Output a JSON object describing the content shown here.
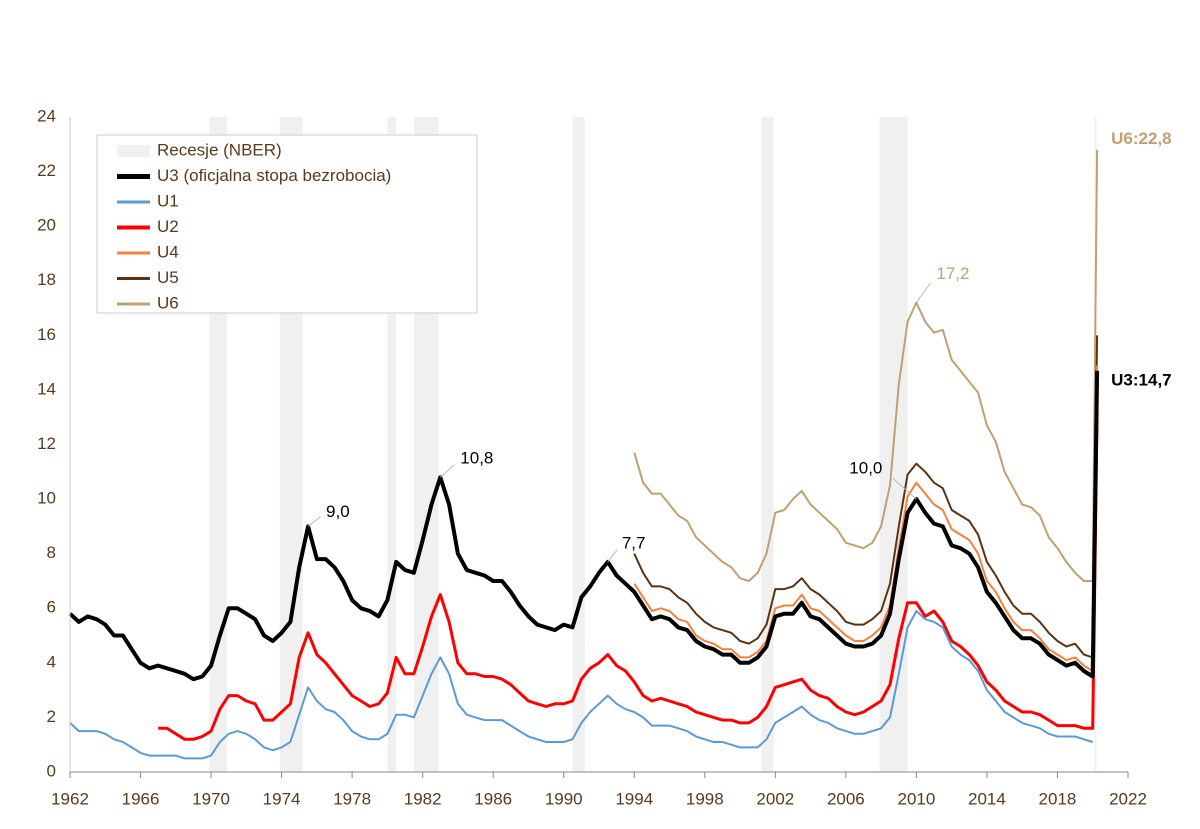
{
  "chart_data": {
    "type": "line",
    "recession_label": "Recesje (NBER)",
    "recession_color": "#f0f0f0",
    "recessions": [
      [
        1969.9,
        1970.9
      ],
      [
        1973.9,
        1975.2
      ],
      [
        1980.0,
        1980.5
      ],
      [
        1981.5,
        1982.9
      ],
      [
        1990.5,
        1991.2
      ],
      [
        2001.2,
        2001.9
      ],
      [
        2007.9,
        2009.5
      ],
      [
        2020.1,
        2020.2
      ]
    ],
    "x": [
      1962.0,
      1962.5,
      1963.0,
      1963.5,
      1964.0,
      1964.5,
      1965.0,
      1965.5,
      1966.0,
      1966.5,
      1967.0,
      1967.5,
      1968.0,
      1968.5,
      1969.0,
      1969.5,
      1970.0,
      1970.5,
      1971.0,
      1971.5,
      1972.0,
      1972.5,
      1973.0,
      1973.5,
      1974.0,
      1974.5,
      1975.0,
      1975.5,
      1976.0,
      1976.5,
      1977.0,
      1977.5,
      1978.0,
      1978.5,
      1979.0,
      1979.5,
      1980.0,
      1980.5,
      1981.0,
      1981.5,
      1982.0,
      1982.5,
      1983.0,
      1983.5,
      1984.0,
      1984.5,
      1985.0,
      1985.5,
      1986.0,
      1986.5,
      1987.0,
      1987.5,
      1988.0,
      1988.5,
      1989.0,
      1989.5,
      1990.0,
      1990.5,
      1991.0,
      1991.5,
      1992.0,
      1992.5,
      1993.0,
      1993.5,
      1994.0,
      1994.5,
      1995.0,
      1995.5,
      1996.0,
      1996.5,
      1997.0,
      1997.5,
      1998.0,
      1998.5,
      1999.0,
      1999.5,
      2000.0,
      2000.5,
      2001.0,
      2001.5,
      2002.0,
      2002.5,
      2003.0,
      2003.5,
      2004.0,
      2004.5,
      2005.0,
      2005.5,
      2006.0,
      2006.5,
      2007.0,
      2007.5,
      2008.0,
      2008.5,
      2009.0,
      2009.5,
      2010.0,
      2010.5,
      2011.0,
      2011.5,
      2012.0,
      2012.5,
      2013.0,
      2013.5,
      2014.0,
      2014.5,
      2015.0,
      2015.5,
      2016.0,
      2016.5,
      2017.0,
      2017.5,
      2018.0,
      2018.5,
      2019.0,
      2019.5,
      2020.0,
      2020.25
    ],
    "series": [
      {
        "name": "U3 (oficjalna stopa bezrobocia)",
        "color": "#000000",
        "width": 4,
        "values": [
          5.8,
          5.5,
          5.7,
          5.6,
          5.4,
          5.0,
          5.0,
          4.5,
          4.0,
          3.8,
          3.9,
          3.8,
          3.7,
          3.6,
          3.4,
          3.5,
          3.9,
          5.0,
          6.0,
          6.0,
          5.8,
          5.6,
          5.0,
          4.8,
          5.1,
          5.5,
          7.5,
          9.0,
          7.8,
          7.8,
          7.5,
          7.0,
          6.3,
          6.0,
          5.9,
          5.7,
          6.3,
          7.7,
          7.4,
          7.3,
          8.5,
          9.8,
          10.8,
          9.8,
          8.0,
          7.4,
          7.3,
          7.2,
          7.0,
          7.0,
          6.6,
          6.1,
          5.7,
          5.4,
          5.3,
          5.2,
          5.4,
          5.3,
          6.4,
          6.8,
          7.3,
          7.7,
          7.2,
          6.9,
          6.6,
          6.1,
          5.6,
          5.7,
          5.6,
          5.3,
          5.2,
          4.8,
          4.6,
          4.5,
          4.3,
          4.3,
          4.0,
          4.0,
          4.2,
          4.6,
          5.7,
          5.8,
          5.8,
          6.2,
          5.7,
          5.6,
          5.3,
          5.0,
          4.7,
          4.6,
          4.6,
          4.7,
          5.0,
          5.8,
          7.8,
          9.5,
          10.0,
          9.5,
          9.1,
          9.0,
          8.3,
          8.2,
          8.0,
          7.5,
          6.6,
          6.2,
          5.7,
          5.2,
          4.9,
          4.9,
          4.7,
          4.3,
          4.1,
          3.9,
          4.0,
          3.7,
          3.5,
          14.7
        ]
      },
      {
        "name": "U1",
        "color": "#5b9bd5",
        "width": 2,
        "values": [
          1.8,
          1.5,
          1.5,
          1.5,
          1.4,
          1.2,
          1.1,
          0.9,
          0.7,
          0.6,
          0.6,
          0.6,
          0.6,
          0.5,
          0.5,
          0.5,
          0.6,
          1.1,
          1.4,
          1.5,
          1.4,
          1.2,
          0.9,
          0.8,
          0.9,
          1.1,
          2.1,
          3.1,
          2.6,
          2.3,
          2.2,
          1.9,
          1.5,
          1.3,
          1.2,
          1.2,
          1.4,
          2.1,
          2.1,
          2.0,
          2.8,
          3.6,
          4.2,
          3.6,
          2.5,
          2.1,
          2.0,
          1.9,
          1.9,
          1.9,
          1.7,
          1.5,
          1.3,
          1.2,
          1.1,
          1.1,
          1.1,
          1.2,
          1.8,
          2.2,
          2.5,
          2.8,
          2.5,
          2.3,
          2.2,
          2.0,
          1.7,
          1.7,
          1.7,
          1.6,
          1.5,
          1.3,
          1.2,
          1.1,
          1.1,
          1.0,
          0.9,
          0.9,
          0.9,
          1.2,
          1.8,
          2.0,
          2.2,
          2.4,
          2.1,
          1.9,
          1.8,
          1.6,
          1.5,
          1.4,
          1.4,
          1.5,
          1.6,
          2.0,
          3.6,
          5.3,
          5.9,
          5.6,
          5.5,
          5.3,
          4.6,
          4.3,
          4.1,
          3.7,
          3.0,
          2.6,
          2.2,
          2.0,
          1.8,
          1.7,
          1.6,
          1.4,
          1.3,
          1.3,
          1.3,
          1.2,
          1.1,
          null
        ]
      },
      {
        "name": "U2",
        "color": "#ff0000",
        "width": 3,
        "values": [
          null,
          null,
          null,
          null,
          null,
          null,
          null,
          null,
          null,
          null,
          1.6,
          1.6,
          1.4,
          1.2,
          1.2,
          1.3,
          1.5,
          2.3,
          2.8,
          2.8,
          2.6,
          2.5,
          1.9,
          1.9,
          2.2,
          2.5,
          4.2,
          5.1,
          4.3,
          4.0,
          3.6,
          3.2,
          2.8,
          2.6,
          2.4,
          2.5,
          2.9,
          4.2,
          3.6,
          3.6,
          4.6,
          5.7,
          6.5,
          5.5,
          4.0,
          3.6,
          3.6,
          3.5,
          3.5,
          3.4,
          3.2,
          2.9,
          2.6,
          2.5,
          2.4,
          2.5,
          2.5,
          2.6,
          3.4,
          3.8,
          4.0,
          4.3,
          3.9,
          3.7,
          3.3,
          2.8,
          2.6,
          2.7,
          2.6,
          2.5,
          2.4,
          2.2,
          2.1,
          2.0,
          1.9,
          1.9,
          1.8,
          1.8,
          2.0,
          2.4,
          3.1,
          3.2,
          3.3,
          3.4,
          3.0,
          2.8,
          2.7,
          2.4,
          2.2,
          2.1,
          2.2,
          2.4,
          2.6,
          3.2,
          4.9,
          6.2,
          6.2,
          5.7,
          5.9,
          5.5,
          4.8,
          4.6,
          4.3,
          3.9,
          3.3,
          3.0,
          2.6,
          2.4,
          2.2,
          2.2,
          2.1,
          1.9,
          1.7,
          1.7,
          1.7,
          1.6,
          1.6,
          13.2
        ]
      },
      {
        "name": "U4",
        "color": "#f4823c",
        "width": 2,
        "values": [
          null,
          null,
          null,
          null,
          null,
          null,
          null,
          null,
          null,
          null,
          null,
          null,
          null,
          null,
          null,
          null,
          null,
          null,
          null,
          null,
          null,
          null,
          null,
          null,
          null,
          null,
          null,
          null,
          null,
          null,
          null,
          null,
          null,
          null,
          null,
          null,
          null,
          null,
          null,
          null,
          null,
          null,
          null,
          null,
          null,
          null,
          null,
          null,
          null,
          null,
          null,
          null,
          null,
          null,
          null,
          null,
          null,
          null,
          null,
          null,
          null,
          null,
          null,
          null,
          6.9,
          6.4,
          5.9,
          6.0,
          5.9,
          5.6,
          5.5,
          5.0,
          4.8,
          4.7,
          4.5,
          4.5,
          4.2,
          4.2,
          4.4,
          4.8,
          6.0,
          6.1,
          6.1,
          6.5,
          6.0,
          5.9,
          5.6,
          5.3,
          5.0,
          4.8,
          4.8,
          5.0,
          5.3,
          6.1,
          8.2,
          10.1,
          10.6,
          10.2,
          9.8,
          9.6,
          8.9,
          8.7,
          8.5,
          8.0,
          7.0,
          6.6,
          6.0,
          5.5,
          5.2,
          5.2,
          4.9,
          4.5,
          4.3,
          4.1,
          4.2,
          3.9,
          3.7,
          14.9
        ]
      },
      {
        "name": "U5",
        "color": "#5c3310",
        "width": 2,
        "values": [
          null,
          null,
          null,
          null,
          null,
          null,
          null,
          null,
          null,
          null,
          null,
          null,
          null,
          null,
          null,
          null,
          null,
          null,
          null,
          null,
          null,
          null,
          null,
          null,
          null,
          null,
          null,
          null,
          null,
          null,
          null,
          null,
          null,
          null,
          null,
          null,
          null,
          null,
          null,
          null,
          null,
          null,
          null,
          null,
          null,
          null,
          null,
          null,
          null,
          null,
          null,
          null,
          null,
          null,
          null,
          null,
          null,
          null,
          null,
          null,
          null,
          null,
          null,
          null,
          8.0,
          7.3,
          6.8,
          6.8,
          6.7,
          6.4,
          6.2,
          5.8,
          5.5,
          5.3,
          5.2,
          5.1,
          4.8,
          4.7,
          4.9,
          5.4,
          6.7,
          6.7,
          6.8,
          7.1,
          6.7,
          6.5,
          6.2,
          5.9,
          5.5,
          5.4,
          5.4,
          5.6,
          5.9,
          6.9,
          9.0,
          10.9,
          11.3,
          11.0,
          10.6,
          10.4,
          9.6,
          9.4,
          9.2,
          8.7,
          7.7,
          7.2,
          6.6,
          6.1,
          5.8,
          5.8,
          5.5,
          5.1,
          4.8,
          4.6,
          4.7,
          4.3,
          4.2,
          16.0
        ]
      },
      {
        "name": "U6",
        "color": "#c0a070",
        "width": 2,
        "values": [
          null,
          null,
          null,
          null,
          null,
          null,
          null,
          null,
          null,
          null,
          null,
          null,
          null,
          null,
          null,
          null,
          null,
          null,
          null,
          null,
          null,
          null,
          null,
          null,
          null,
          null,
          null,
          null,
          null,
          null,
          null,
          null,
          null,
          null,
          null,
          null,
          null,
          null,
          null,
          null,
          null,
          null,
          null,
          null,
          null,
          null,
          null,
          null,
          null,
          null,
          null,
          null,
          null,
          null,
          null,
          null,
          null,
          null,
          null,
          null,
          null,
          null,
          null,
          null,
          11.7,
          10.6,
          10.2,
          10.2,
          9.8,
          9.4,
          9.2,
          8.6,
          8.3,
          8.0,
          7.7,
          7.5,
          7.1,
          7.0,
          7.3,
          8.0,
          9.5,
          9.6,
          10.0,
          10.3,
          9.8,
          9.5,
          9.2,
          8.9,
          8.4,
          8.3,
          8.2,
          8.4,
          9.0,
          10.5,
          14.2,
          16.5,
          17.2,
          16.5,
          16.1,
          16.2,
          15.1,
          14.7,
          14.3,
          13.9,
          12.7,
          12.1,
          11.0,
          10.4,
          9.8,
          9.7,
          9.4,
          8.6,
          8.2,
          7.7,
          7.3,
          7.0,
          7.0,
          22.8
        ]
      }
    ],
    "annotations": [
      {
        "x": 1975.5,
        "y": 9.0,
        "label": "9,0",
        "color": "#000000"
      },
      {
        "x": 1983.0,
        "y": 10.8,
        "label": "10,8",
        "color": "#000000"
      },
      {
        "x": 1992.5,
        "y": 7.7,
        "label": "7,7",
        "color": "#000000"
      },
      {
        "x": 2010.0,
        "y": 10.0,
        "label": "10,0",
        "color": "#000000"
      },
      {
        "x": 2010.0,
        "y": 17.2,
        "label": "17,2",
        "color": "#c0a070"
      },
      {
        "x": 2020.25,
        "y": 22.8,
        "label": "U6:22,8",
        "color": "#c0a070",
        "bold": true
      },
      {
        "x": 2020.25,
        "y": 14.7,
        "label": "U3:14,7",
        "color": "#000000",
        "bold": true
      }
    ],
    "xlim": [
      1962,
      2022
    ],
    "xticks": [
      1962,
      1966,
      1970,
      1974,
      1978,
      1982,
      1986,
      1990,
      1994,
      1998,
      2002,
      2006,
      2010,
      2014,
      2018,
      2022
    ],
    "ylim": [
      0,
      24
    ],
    "yticks": [
      0,
      2,
      4,
      6,
      8,
      10,
      12,
      14,
      16,
      18,
      20,
      22,
      24
    ]
  }
}
